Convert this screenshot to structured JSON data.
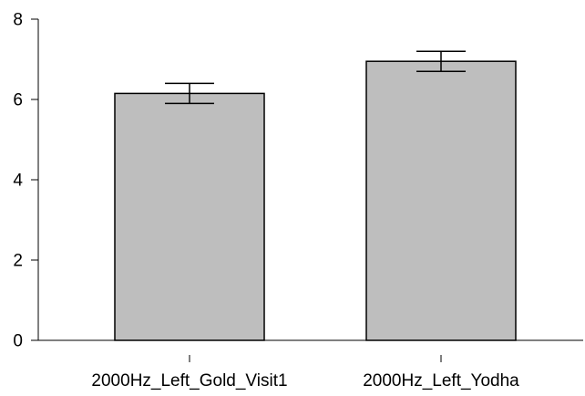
{
  "chart_data": {
    "type": "bar",
    "title": "",
    "xlabel": "",
    "ylabel": "",
    "categories": [
      "2000Hz_Left_Gold_Visit1",
      "2000Hz_Left_Yodha"
    ],
    "values": [
      6.15,
      6.95
    ],
    "error_low": [
      5.9,
      6.7
    ],
    "error_high": [
      6.4,
      7.2
    ],
    "ylim": [
      0,
      8
    ],
    "yticks": [
      0,
      2,
      4,
      6,
      8
    ],
    "grid": false,
    "legend": "none",
    "colors": {
      "bar_fill": "#bebebe",
      "bar_stroke": "#000000"
    }
  }
}
